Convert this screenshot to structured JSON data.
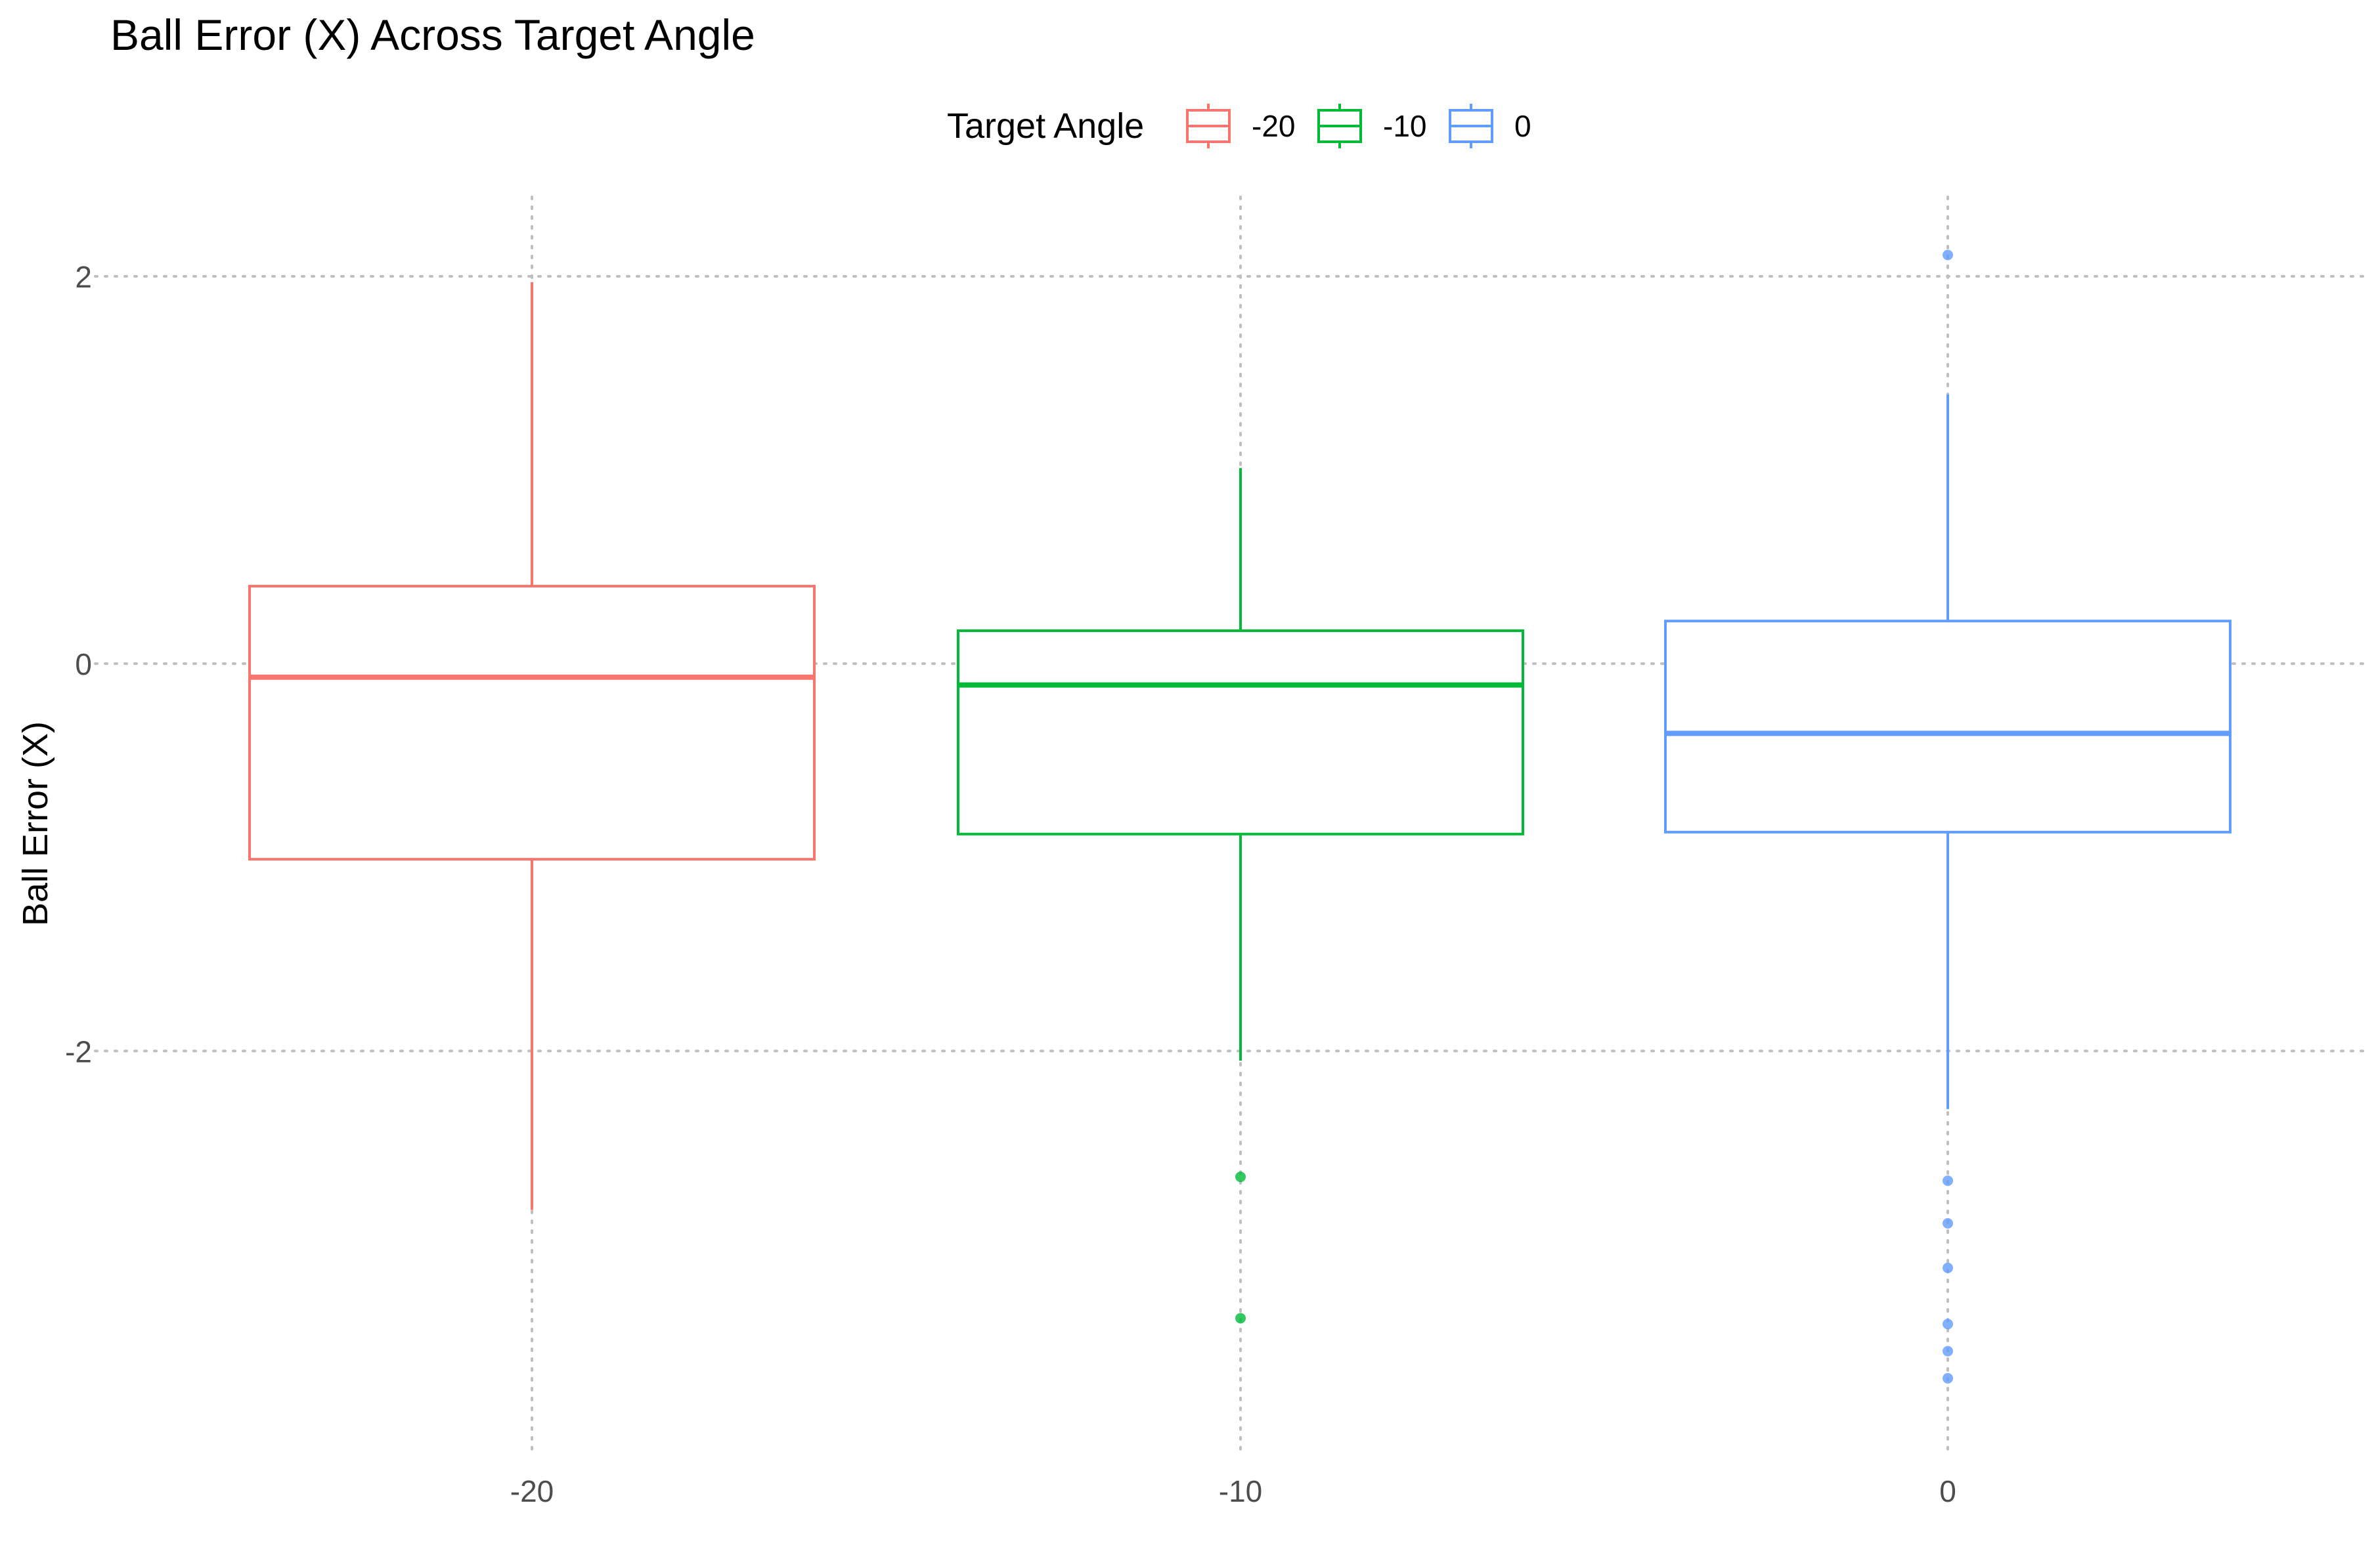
{
  "chart_data": {
    "type": "boxplot",
    "title": "Ball Error (X) Across Target Angle",
    "xlabel": "",
    "ylabel": "Ball Error (X)",
    "legend": {
      "title": "Target Angle",
      "position": "top",
      "entries": [
        "-20",
        "-10",
        "0"
      ]
    },
    "categories": [
      "-20",
      "-10",
      "0"
    ],
    "y_ticks": [
      -2,
      0,
      2
    ],
    "ylim": [
      -4.08,
      2.41
    ],
    "grid": true,
    "colors": {
      "-20": "#F8766D",
      "-10": "#00BA38",
      "0": "#619CFF"
    },
    "series": [
      {
        "name": "-20",
        "whisker_low": -2.82,
        "q1": -1.01,
        "median": -0.07,
        "q3": 0.4,
        "whisker_high": 1.97,
        "outliers": []
      },
      {
        "name": "-10",
        "whisker_low": -2.05,
        "q1": -0.88,
        "median": -0.11,
        "q3": 0.17,
        "whisker_high": 1.01,
        "outliers": [
          -2.65,
          -3.38
        ]
      },
      {
        "name": "0",
        "whisker_low": -2.3,
        "q1": -0.87,
        "median": -0.36,
        "q3": 0.22,
        "whisker_high": 1.39,
        "outliers": [
          2.11,
          -2.67,
          -2.89,
          -3.12,
          -3.41,
          -3.55,
          -3.69
        ]
      }
    ]
  }
}
